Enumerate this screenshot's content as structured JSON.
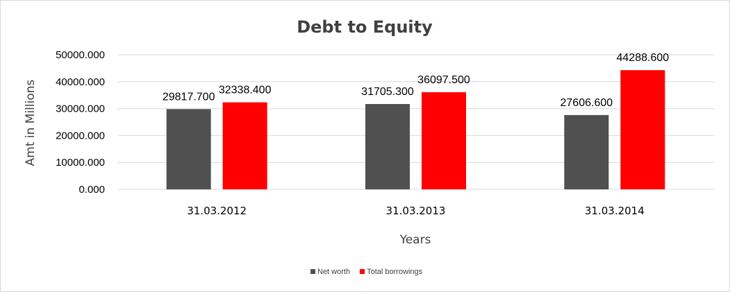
{
  "chart_data": {
    "type": "bar",
    "title": "Debt to Equity",
    "xlabel": "Years",
    "ylabel": "Amt in Millions",
    "categories": [
      "31.03.2012",
      "31.03.2013",
      "31.03.2014"
    ],
    "series": [
      {
        "name": "Net worth",
        "color": "#505050",
        "values": [
          29817.7,
          31705.3,
          27606.6
        ],
        "labels": [
          "29817.700",
          "31705.300",
          "27606.600"
        ]
      },
      {
        "name": "Total borrowings",
        "color": "#ff0000",
        "values": [
          32338.4,
          36097.5,
          44288.6
        ],
        "labels": [
          "32338.400",
          "36097.500",
          "44288.600"
        ]
      }
    ],
    "ylim": [
      0,
      50000
    ],
    "yticks": [
      "0.000",
      "10000.000",
      "20000.000",
      "30000.000",
      "40000.000",
      "50000.000"
    ],
    "grid": true,
    "legend_position": "bottom"
  }
}
